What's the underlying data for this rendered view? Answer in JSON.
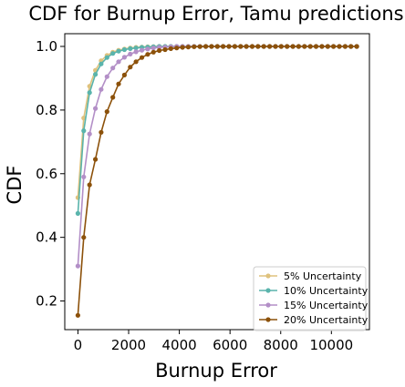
{
  "chart_data": {
    "type": "line",
    "title": "CDF for Burnup Error, Tamu predictions",
    "xlabel": "Burnup Error",
    "ylabel": "CDF",
    "xlim": [
      -520,
      11500
    ],
    "ylim": [
      0.11,
      1.04
    ],
    "xticks": [
      0,
      2000,
      4000,
      6000,
      8000,
      10000
    ],
    "yticks": [
      0.2,
      0.4,
      0.6,
      0.8,
      1.0
    ],
    "xtick_labels": [
      "0",
      "2000",
      "4000",
      "6000",
      "8000",
      "10000"
    ],
    "ytick_labels": [
      "0.2",
      "0.4",
      "0.6",
      "0.8",
      "1.0"
    ],
    "grid": false,
    "legend_position": "lower-right",
    "x": [
      0,
      229,
      458,
      688,
      917,
      1146,
      1375,
      1604,
      1833,
      2063,
      2292,
      2521,
      2750,
      2979,
      3208,
      3438,
      3667,
      3896,
      4125,
      4354,
      4583,
      4813,
      5042,
      5271,
      5500,
      5729,
      5958,
      6188,
      6417,
      6646,
      6875,
      7104,
      7333,
      7563,
      7792,
      8021,
      8250,
      8479,
      8708,
      8938,
      9167,
      9396,
      9625,
      9854,
      10083,
      10313,
      10542,
      10771,
      11000
    ],
    "series": [
      {
        "name": "5% Uncertainty",
        "color": "#dfc27d",
        "values": [
          0.525,
          0.775,
          0.875,
          0.925,
          0.955,
          0.972,
          0.982,
          0.988,
          0.992,
          0.995,
          0.997,
          0.998,
          0.999,
          0.9995,
          1.0,
          1.0,
          1.0,
          1.0,
          1.0,
          1.0,
          1.0,
          1.0,
          1.0,
          1.0,
          1.0,
          1.0,
          1.0,
          1.0,
          1.0,
          1.0,
          1.0,
          1.0,
          1.0,
          1.0,
          1.0,
          1.0,
          1.0,
          1.0,
          1.0,
          1.0,
          1.0,
          1.0,
          1.0,
          1.0,
          1.0,
          1.0,
          1.0,
          1.0,
          1.0
        ]
      },
      {
        "name": "10% Uncertainty",
        "color": "#5ab4ac",
        "values": [
          0.475,
          0.735,
          0.855,
          0.912,
          0.945,
          0.965,
          0.978,
          0.985,
          0.99,
          0.993,
          0.995,
          0.997,
          0.998,
          0.999,
          1.0,
          1.0,
          1.0,
          1.0,
          1.0,
          1.0,
          1.0,
          1.0,
          1.0,
          1.0,
          1.0,
          1.0,
          1.0,
          1.0,
          1.0,
          1.0,
          1.0,
          1.0,
          1.0,
          1.0,
          1.0,
          1.0,
          1.0,
          1.0,
          1.0,
          1.0,
          1.0,
          1.0,
          1.0,
          1.0,
          1.0,
          1.0,
          1.0,
          1.0,
          1.0
        ]
      },
      {
        "name": "15% Uncertainty",
        "color": "#b38fc7",
        "values": [
          0.31,
          0.59,
          0.725,
          0.805,
          0.865,
          0.905,
          0.932,
          0.952,
          0.966,
          0.976,
          0.983,
          0.988,
          0.992,
          0.995,
          0.997,
          0.998,
          0.999,
          1.0,
          1.0,
          1.0,
          1.0,
          1.0,
          1.0,
          1.0,
          1.0,
          1.0,
          1.0,
          1.0,
          1.0,
          1.0,
          1.0,
          1.0,
          1.0,
          1.0,
          1.0,
          1.0,
          1.0,
          1.0,
          1.0,
          1.0,
          1.0,
          1.0,
          1.0,
          1.0,
          1.0,
          1.0,
          1.0,
          1.0,
          1.0
        ]
      },
      {
        "name": "20% Uncertainty",
        "color": "#8c510a",
        "values": [
          0.155,
          0.4,
          0.565,
          0.645,
          0.73,
          0.795,
          0.84,
          0.882,
          0.91,
          0.935,
          0.952,
          0.965,
          0.975,
          0.982,
          0.987,
          0.99,
          0.993,
          0.995,
          0.997,
          0.998,
          0.999,
          0.9995,
          1.0,
          1.0,
          1.0,
          1.0,
          1.0,
          1.0,
          1.0,
          1.0,
          1.0,
          1.0,
          1.0,
          1.0,
          1.0,
          1.0,
          1.0,
          1.0,
          1.0,
          1.0,
          1.0,
          1.0,
          1.0,
          1.0,
          1.0,
          1.0,
          1.0,
          1.0,
          1.0
        ]
      }
    ]
  }
}
